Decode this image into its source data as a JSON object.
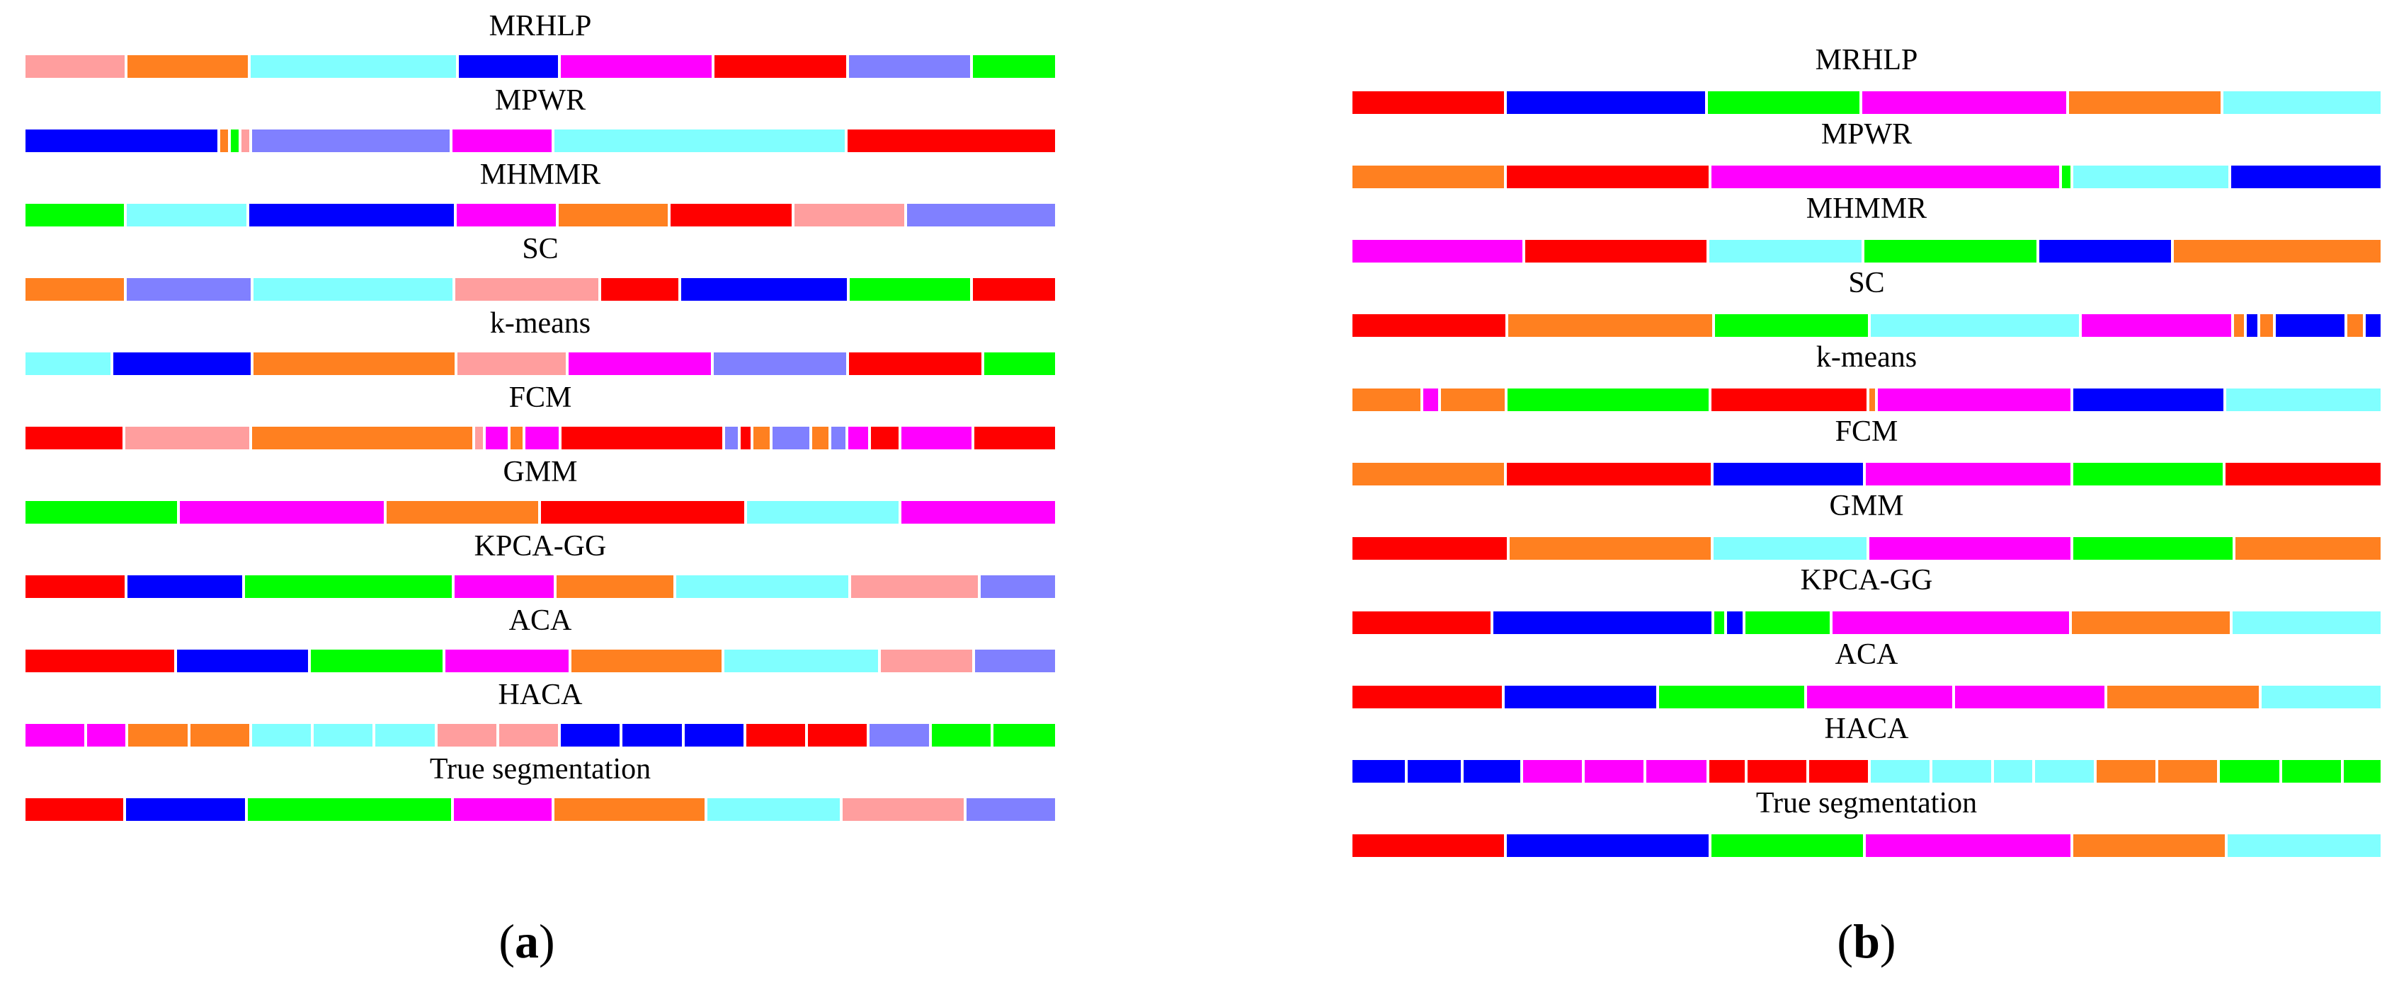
{
  "colors": {
    "red": "#ff0000",
    "blue": "#0000ff",
    "green": "#00ff00",
    "magenta": "#ff00ff",
    "orange": "#ff8020",
    "cyan": "#80ffff",
    "pink": "#ff9e9e",
    "periwinkle": "#8080ff"
  },
  "panels": [
    {
      "id": "a",
      "caption_open": "(",
      "caption_letter": "a",
      "caption_close": ")",
      "rows": [
        {
          "label": "MRHLP",
          "segments": [
            {
              "c": "pink",
              "w": 9.8
            },
            {
              "c": "orange",
              "w": 11.8
            },
            {
              "c": "cyan",
              "w": 20
            },
            {
              "c": "blue",
              "w": 9.8
            },
            {
              "c": "magenta",
              "w": 14.7
            },
            {
              "c": "red",
              "w": 12.9
            },
            {
              "c": "periwinkle",
              "w": 11.9
            },
            {
              "c": "green",
              "w": 7.9
            }
          ]
        },
        {
          "label": "MPWR",
          "segments": [
            {
              "c": "blue",
              "w": 18.7
            },
            {
              "c": "orange",
              "w": 1
            },
            {
              "c": "green",
              "w": 1
            },
            {
              "c": "pink",
              "w": 1
            },
            {
              "c": "periwinkle",
              "w": 19.2
            },
            {
              "c": "magenta",
              "w": 9.8
            },
            {
              "c": "cyan",
              "w": 28.1
            },
            {
              "c": "red",
              "w": 19.9
            }
          ]
        },
        {
          "label": "MHMMR",
          "segments": [
            {
              "c": "green",
              "w": 9.8
            },
            {
              "c": "cyan",
              "w": 11.8
            },
            {
              "c": "blue",
              "w": 20
            },
            {
              "c": "magenta",
              "w": 9.8
            },
            {
              "c": "orange",
              "w": 10.8
            },
            {
              "c": "red",
              "w": 12
            },
            {
              "c": "pink",
              "w": 10.8
            },
            {
              "c": "periwinkle",
              "w": 14.3
            }
          ]
        },
        {
          "label": "SC",
          "segments": [
            {
              "c": "orange",
              "w": 9.8
            },
            {
              "c": "periwinkle",
              "w": 12.2
            },
            {
              "c": "cyan",
              "w": 19.5
            },
            {
              "c": "pink",
              "w": 14.1
            },
            {
              "c": "red",
              "w": 7.7
            },
            {
              "c": "blue",
              "w": 16.3
            },
            {
              "c": "green",
              "w": 11.9
            },
            {
              "c": "red",
              "w": 7.9
            }
          ]
        },
        {
          "label": "k-means",
          "segments": [
            {
              "c": "cyan",
              "w": 8.5
            },
            {
              "c": "blue",
              "w": 13.6
            },
            {
              "c": "orange",
              "w": 19.8
            },
            {
              "c": "pink",
              "w": 10.8
            },
            {
              "c": "magenta",
              "w": 14.1
            },
            {
              "c": "periwinkle",
              "w": 13.1
            },
            {
              "c": "red",
              "w": 13.1
            },
            {
              "c": "green",
              "w": 6.9
            }
          ]
        },
        {
          "label": "FCM",
          "segments": [
            {
              "c": "red",
              "w": 9.5
            },
            {
              "c": "pink",
              "w": 12.1
            },
            {
              "c": "orange",
              "w": 21.2
            },
            {
              "c": "pink",
              "w": 1
            },
            {
              "c": "magenta",
              "w": 2.4
            },
            {
              "c": "orange",
              "w": 1.4
            },
            {
              "c": "magenta",
              "w": 3.4
            },
            {
              "c": "red",
              "w": 15.6
            },
            {
              "c": "periwinkle",
              "w": 1.5
            },
            {
              "c": "red",
              "w": 1.2
            },
            {
              "c": "orange",
              "w": 1.8
            },
            {
              "c": "periwinkle",
              "w": 3.8
            },
            {
              "c": "orange",
              "w": 1.8
            },
            {
              "c": "periwinkle",
              "w": 1.6
            },
            {
              "c": "magenta",
              "w": 2.2
            },
            {
              "c": "red",
              "w": 2.9
            },
            {
              "c": "magenta",
              "w": 6.9
            },
            {
              "c": "red",
              "w": 7.7
            }
          ]
        },
        {
          "label": "GMM",
          "segments": [
            {
              "c": "green",
              "w": 15
            },
            {
              "c": "magenta",
              "w": 20.1
            },
            {
              "c": "orange",
              "w": 15
            },
            {
              "c": "red",
              "w": 20
            },
            {
              "c": "cyan",
              "w": 15
            },
            {
              "c": "magenta",
              "w": 14.9
            }
          ]
        },
        {
          "label": "KPCA-GG",
          "segments": [
            {
              "c": "red",
              "w": 9.9
            },
            {
              "c": "blue",
              "w": 11.4
            },
            {
              "c": "green",
              "w": 20.4
            },
            {
              "c": "magenta",
              "w": 9.9
            },
            {
              "c": "orange",
              "w": 11.6
            },
            {
              "c": "cyan",
              "w": 17
            },
            {
              "c": "pink",
              "w": 12.6
            },
            {
              "c": "periwinkle",
              "w": 7.2
            }
          ]
        },
        {
          "label": "ACA",
          "segments": [
            {
              "c": "red",
              "w": 14.7
            },
            {
              "c": "blue",
              "w": 13
            },
            {
              "c": "green",
              "w": 13.1
            },
            {
              "c": "magenta",
              "w": 12.2
            },
            {
              "c": "orange",
              "w": 14.9
            },
            {
              "c": "cyan",
              "w": 15.2
            },
            {
              "c": "pink",
              "w": 9.1
            },
            {
              "c": "periwinkle",
              "w": 7.8
            }
          ]
        },
        {
          "label": "HACA",
          "segments": [
            {
              "c": "magenta",
              "w": 6
            },
            {
              "c": "magenta",
              "w": 4
            },
            {
              "c": "orange",
              "w": 6
            },
            {
              "c": "orange",
              "w": 6
            },
            {
              "c": "cyan",
              "w": 6
            },
            {
              "c": "cyan",
              "w": 6
            },
            {
              "c": "cyan",
              "w": 6
            },
            {
              "c": "pink",
              "w": 6
            },
            {
              "c": "pink",
              "w": 6
            },
            {
              "c": "blue",
              "w": 6
            },
            {
              "c": "blue",
              "w": 6
            },
            {
              "c": "blue",
              "w": 6
            },
            {
              "c": "red",
              "w": 6
            },
            {
              "c": "red",
              "w": 6
            },
            {
              "c": "periwinkle",
              "w": 6
            },
            {
              "c": "green",
              "w": 6
            },
            {
              "c": "green",
              "w": 6
            }
          ]
        },
        {
          "label": "True segmentation",
          "segments": [
            {
              "c": "red",
              "w": 9.8
            },
            {
              "c": "blue",
              "w": 11.8
            },
            {
              "c": "green",
              "w": 20
            },
            {
              "c": "magenta",
              "w": 9.8
            },
            {
              "c": "orange",
              "w": 14.8
            },
            {
              "c": "cyan",
              "w": 13.2
            },
            {
              "c": "pink",
              "w": 12
            },
            {
              "c": "periwinkle",
              "w": 8.6
            }
          ]
        }
      ]
    },
    {
      "id": "b",
      "caption_open": "(",
      "caption_letter": "b",
      "caption_close": ")",
      "rows": [
        {
          "label": "MRHLP",
          "segments": [
            {
              "c": "red",
              "w": 15
            },
            {
              "c": "blue",
              "w": 19.6
            },
            {
              "c": "green",
              "w": 15
            },
            {
              "c": "magenta",
              "w": 20.1
            },
            {
              "c": "orange",
              "w": 15
            },
            {
              "c": "cyan",
              "w": 15.3
            }
          ]
        },
        {
          "label": "MPWR",
          "segments": [
            {
              "c": "orange",
              "w": 15
            },
            {
              "c": "red",
              "w": 19.9
            },
            {
              "c": "magenta",
              "w": 34.1
            },
            {
              "c": "green",
              "w": 1.1
            },
            {
              "c": "cyan",
              "w": 15.4
            },
            {
              "c": "blue",
              "w": 14.5
            }
          ]
        },
        {
          "label": "MHMMR",
          "segments": [
            {
              "c": "magenta",
              "w": 16.8
            },
            {
              "c": "red",
              "w": 17.9
            },
            {
              "c": "cyan",
              "w": 15.1
            },
            {
              "c": "green",
              "w": 17
            },
            {
              "c": "blue",
              "w": 13.1
            },
            {
              "c": "orange",
              "w": 20.1
            }
          ]
        },
        {
          "label": "SC",
          "segments": [
            {
              "c": "red",
              "w": 15
            },
            {
              "c": "orange",
              "w": 19.9
            },
            {
              "c": "green",
              "w": 15
            },
            {
              "c": "cyan",
              "w": 20.3
            },
            {
              "c": "magenta",
              "w": 14.7
            },
            {
              "c": "orange",
              "w": 1.2
            },
            {
              "c": "blue",
              "w": 1.3
            },
            {
              "c": "orange",
              "w": 1.5
            },
            {
              "c": "blue",
              "w": 6.9
            },
            {
              "c": "orange",
              "w": 1.8
            },
            {
              "c": "blue",
              "w": 1.4
            }
          ]
        },
        {
          "label": "k-means",
          "segments": [
            {
              "c": "orange",
              "w": 6.9
            },
            {
              "c": "magenta",
              "w": 1.7
            },
            {
              "c": "orange",
              "w": 6.5
            },
            {
              "c": "green",
              "w": 19.8
            },
            {
              "c": "red",
              "w": 15.4
            },
            {
              "c": "orange",
              "w": 0.8
            },
            {
              "c": "magenta",
              "w": 19
            },
            {
              "c": "blue",
              "w": 14.9
            },
            {
              "c": "cyan",
              "w": 15
            }
          ]
        },
        {
          "label": "FCM",
          "segments": [
            {
              "c": "orange",
              "w": 15
            },
            {
              "c": "red",
              "w": 20.1
            },
            {
              "c": "blue",
              "w": 14.8
            },
            {
              "c": "magenta",
              "w": 20.2
            },
            {
              "c": "green",
              "w": 14.8
            },
            {
              "c": "red",
              "w": 15.1
            }
          ]
        },
        {
          "label": "GMM",
          "segments": [
            {
              "c": "red",
              "w": 15.3
            },
            {
              "c": "orange",
              "w": 19.8
            },
            {
              "c": "cyan",
              "w": 15.2
            },
            {
              "c": "magenta",
              "w": 19.8
            },
            {
              "c": "green",
              "w": 15.8
            },
            {
              "c": "orange",
              "w": 14.1
            }
          ]
        },
        {
          "label": "KPCA-GG",
          "segments": [
            {
              "c": "red",
              "w": 13.7
            },
            {
              "c": "blue",
              "w": 21.5
            },
            {
              "c": "green",
              "w": 1.2
            },
            {
              "c": "blue",
              "w": 1.8
            },
            {
              "c": "green",
              "w": 8.5
            },
            {
              "c": "magenta",
              "w": 23.3
            },
            {
              "c": "orange",
              "w": 15.6
            },
            {
              "c": "cyan",
              "w": 14.4
            }
          ]
        },
        {
          "label": "ACA",
          "segments": [
            {
              "c": "red",
              "w": 14.8
            },
            {
              "c": "blue",
              "w": 15
            },
            {
              "c": "green",
              "w": 14.4
            },
            {
              "c": "magenta",
              "w": 14.4
            },
            {
              "c": "magenta",
              "w": 14.8
            },
            {
              "c": "orange",
              "w": 15
            },
            {
              "c": "cyan",
              "w": 11.6
            }
          ]
        },
        {
          "label": "HACA",
          "segments": [
            {
              "c": "blue",
              "w": 5.4
            },
            {
              "c": "blue",
              "w": 5.4
            },
            {
              "c": "blue",
              "w": 5.8
            },
            {
              "c": "magenta",
              "w": 6
            },
            {
              "c": "magenta",
              "w": 6
            },
            {
              "c": "magenta",
              "w": 6.1
            },
            {
              "c": "red",
              "w": 3.7
            },
            {
              "c": "red",
              "w": 6
            },
            {
              "c": "red",
              "w": 6
            },
            {
              "c": "cyan",
              "w": 6
            },
            {
              "c": "cyan",
              "w": 6
            },
            {
              "c": "cyan",
              "w": 4
            },
            {
              "c": "cyan",
              "w": 6
            },
            {
              "c": "orange",
              "w": 6
            },
            {
              "c": "orange",
              "w": 6
            },
            {
              "c": "green",
              "w": 6
            },
            {
              "c": "green",
              "w": 6
            },
            {
              "c": "green",
              "w": 3.6
            }
          ]
        },
        {
          "label": "True segmentation",
          "segments": [
            {
              "c": "red",
              "w": 15
            },
            {
              "c": "blue",
              "w": 19.9
            },
            {
              "c": "green",
              "w": 15
            },
            {
              "c": "magenta",
              "w": 20.2
            },
            {
              "c": "orange",
              "w": 15
            },
            {
              "c": "cyan",
              "w": 14.9
            }
          ]
        }
      ]
    }
  ]
}
